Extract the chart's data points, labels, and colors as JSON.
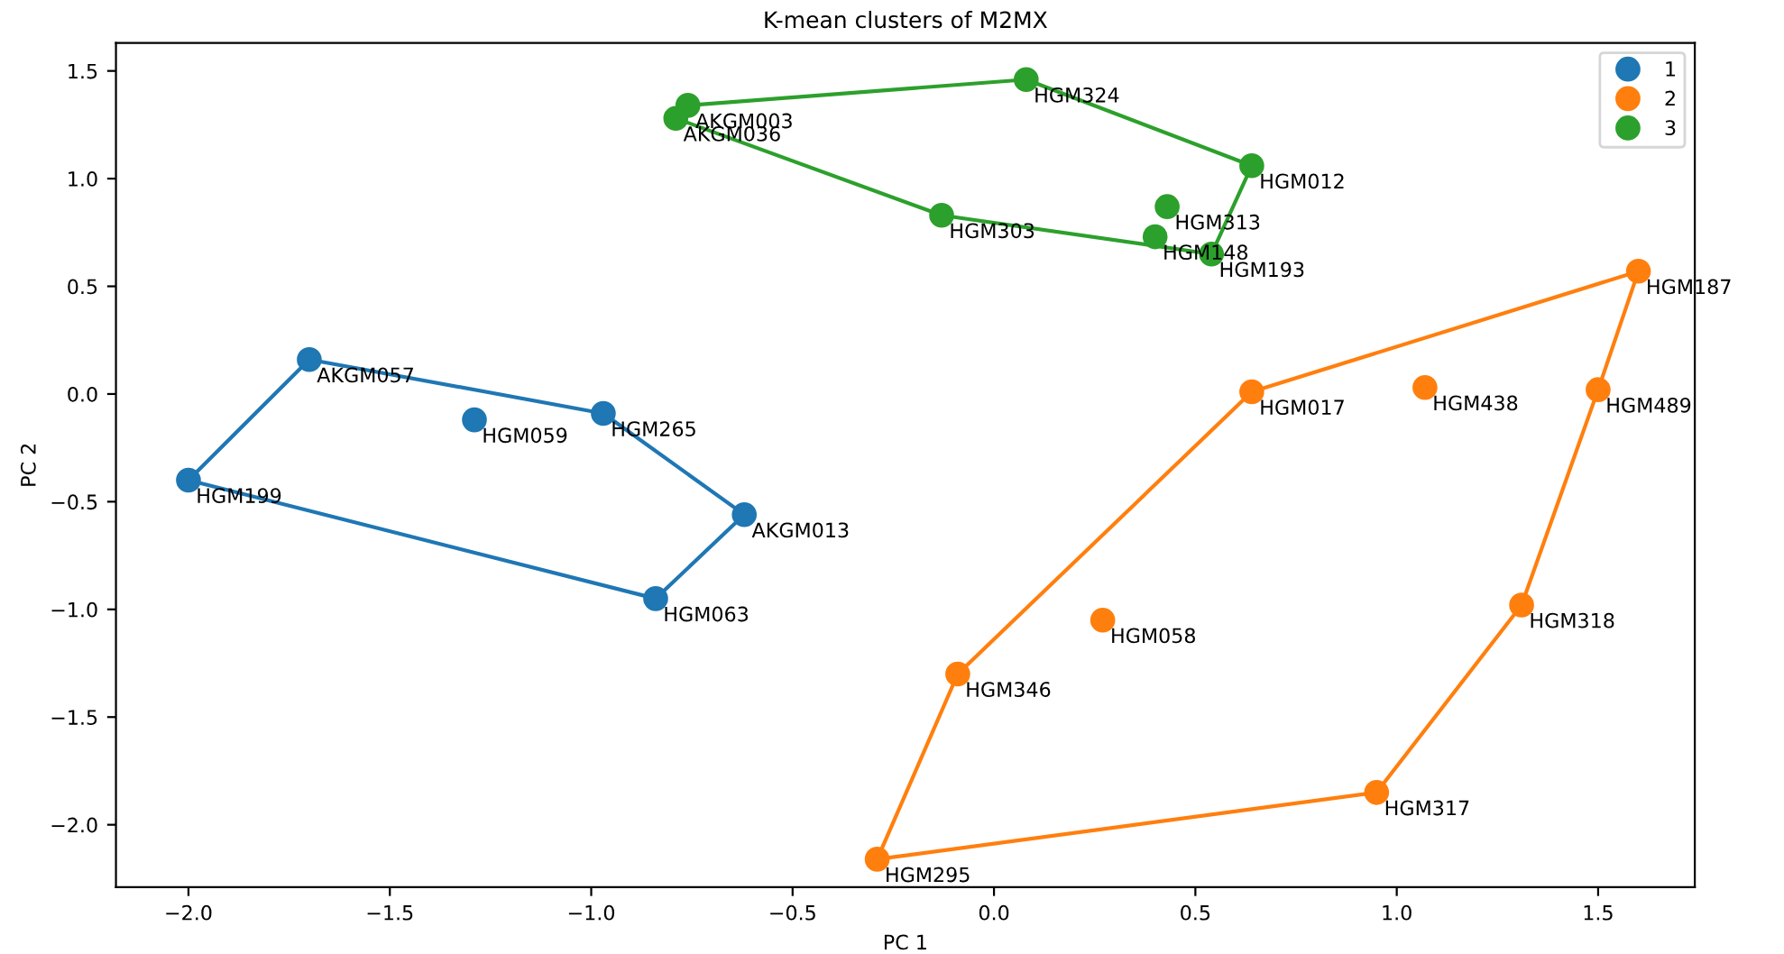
{
  "chart_data": {
    "type": "scatter",
    "title": "K-mean clusters of M2MX",
    "xlabel": "PC 1",
    "ylabel": "PC 2",
    "xlim": [
      -2.18,
      1.74
    ],
    "ylim": [
      -2.29,
      1.63
    ],
    "xticks": [
      {
        "value": -2.0,
        "label": "−2.0"
      },
      {
        "value": -1.5,
        "label": "−1.5"
      },
      {
        "value": -1.0,
        "label": "−1.0"
      },
      {
        "value": -0.5,
        "label": "−0.5"
      },
      {
        "value": 0.0,
        "label": "0.0"
      },
      {
        "value": 0.5,
        "label": "0.5"
      },
      {
        "value": 1.0,
        "label": "1.0"
      },
      {
        "value": 1.5,
        "label": "1.5"
      }
    ],
    "yticks": [
      {
        "value": -2.0,
        "label": "−2.0"
      },
      {
        "value": -1.5,
        "label": "−1.5"
      },
      {
        "value": -1.0,
        "label": "−1.0"
      },
      {
        "value": -0.5,
        "label": "−0.5"
      },
      {
        "value": 0.0,
        "label": "0.0"
      },
      {
        "value": 0.5,
        "label": "0.5"
      },
      {
        "value": 1.0,
        "label": "1.0"
      },
      {
        "value": 1.5,
        "label": "1.5"
      }
    ],
    "grid": false,
    "legend": "top right",
    "series": [
      {
        "name": "1",
        "marker": "circle",
        "color": "#1f77b4",
        "x": [
          -1.7,
          -1.29,
          -0.97,
          -2.0,
          -0.62,
          -0.84
        ],
        "values": [
          0.16,
          -0.12,
          -0.09,
          -0.4,
          -0.56,
          -0.95
        ]
      },
      {
        "name": "2",
        "marker": "circle",
        "color": "#ff7f0e",
        "x": [
          1.6,
          0.64,
          1.07,
          1.5,
          0.27,
          -0.09,
          1.31,
          0.95,
          -0.29
        ],
        "values": [
          0.57,
          0.01,
          0.03,
          0.02,
          -1.05,
          -1.3,
          -0.98,
          -1.85,
          -2.16
        ]
      },
      {
        "name": "3",
        "marker": "circle",
        "color": "#2ca02c",
        "x": [
          -0.76,
          -0.79,
          0.08,
          0.64,
          0.43,
          0.4,
          0.54,
          -0.13
        ],
        "values": [
          1.34,
          1.28,
          1.46,
          1.06,
          0.87,
          0.73,
          0.65,
          0.83
        ]
      },
      {
        "type": "line",
        "color": "#1f77b4",
        "line_style": "solid",
        "x": [
          -2.0,
          -1.7,
          -0.97,
          -0.62
        ],
        "values": [
          -0.4,
          0.16,
          -0.09,
          -0.56
        ]
      },
      {
        "type": "line",
        "color": "#1f77b4",
        "line_style": "solid",
        "x": [
          -2.0,
          -0.84,
          -0.62
        ],
        "values": [
          -0.4,
          -0.95,
          -0.56
        ]
      },
      {
        "type": "line",
        "color": "#ff7f0e",
        "line_style": "solid",
        "x": [
          -0.29,
          -0.09,
          0.64,
          1.6
        ],
        "values": [
          -2.16,
          -1.3,
          0.01,
          0.57
        ]
      },
      {
        "type": "line",
        "color": "#ff7f0e",
        "line_style": "solid",
        "x": [
          -0.29,
          0.95,
          1.31,
          1.5,
          1.6
        ],
        "values": [
          -2.16,
          -1.85,
          -0.98,
          0.02,
          0.57
        ]
      },
      {
        "type": "line",
        "color": "#2ca02c",
        "line_style": "solid",
        "x": [
          -0.79,
          -0.76,
          0.08,
          0.64
        ],
        "values": [
          1.28,
          1.34,
          1.46,
          1.06
        ]
      },
      {
        "type": "line",
        "color": "#2ca02c",
        "line_style": "solid",
        "x": [
          -0.79,
          -0.13,
          0.54,
          0.64
        ],
        "values": [
          1.28,
          0.83,
          0.65,
          1.06
        ]
      }
    ],
    "annotations": [
      {
        "text": "AKGM057",
        "x": -1.7,
        "y": 0.16
      },
      {
        "text": "HGM059",
        "x": -1.29,
        "y": -0.12
      },
      {
        "text": "HGM265",
        "x": -0.97,
        "y": -0.09
      },
      {
        "text": "HGM199",
        "x": -2.0,
        "y": -0.4
      },
      {
        "text": "AKGM013",
        "x": -0.62,
        "y": -0.56
      },
      {
        "text": "HGM063",
        "x": -0.84,
        "y": -0.95
      },
      {
        "text": "HGM187",
        "x": 1.6,
        "y": 0.57
      },
      {
        "text": "HGM017",
        "x": 0.64,
        "y": 0.01
      },
      {
        "text": "HGM438",
        "x": 1.07,
        "y": 0.03
      },
      {
        "text": "HGM489",
        "x": 1.5,
        "y": 0.02
      },
      {
        "text": "HGM058",
        "x": 0.27,
        "y": -1.05
      },
      {
        "text": "HGM346",
        "x": -0.09,
        "y": -1.3
      },
      {
        "text": "HGM318",
        "x": 1.31,
        "y": -0.98
      },
      {
        "text": "HGM317",
        "x": 0.95,
        "y": -1.85
      },
      {
        "text": "HGM295",
        "x": -0.29,
        "y": -2.16
      },
      {
        "text": "AKGM003",
        "x": -0.76,
        "y": 1.34
      },
      {
        "text": "AKGM036",
        "x": -0.79,
        "y": 1.28
      },
      {
        "text": "HGM324",
        "x": 0.08,
        "y": 1.46
      },
      {
        "text": "HGM012",
        "x": 0.64,
        "y": 1.06
      },
      {
        "text": "HGM313",
        "x": 0.43,
        "y": 0.87
      },
      {
        "text": "HGM148",
        "x": 0.4,
        "y": 0.73
      },
      {
        "text": "HGM193",
        "x": 0.54,
        "y": 0.65
      },
      {
        "text": "HGM303",
        "x": -0.13,
        "y": 0.83
      }
    ]
  }
}
